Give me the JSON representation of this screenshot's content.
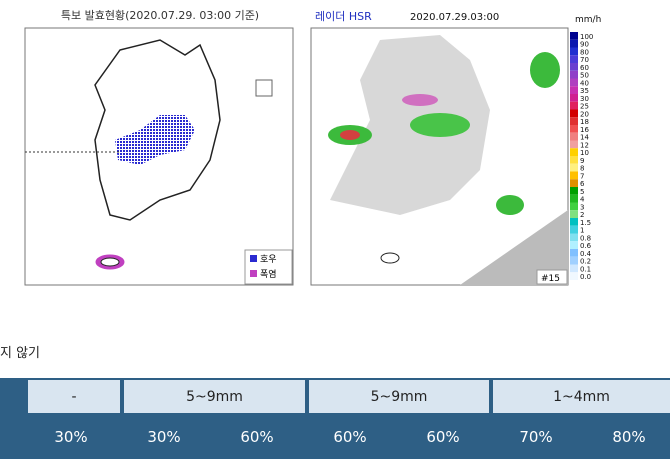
{
  "warning_map": {
    "title": "특보 발효현황(2020.07.29. 03:00 기준)",
    "legend": [
      "호우",
      "폭염"
    ]
  },
  "radar_map": {
    "title": "레이더 HSR",
    "time": "2020.07.29.03:00",
    "unit": "mm/h",
    "scale": [
      "100",
      "90",
      "80",
      "70",
      "60",
      "50",
      "40",
      "35",
      "30",
      "25",
      "20",
      "18",
      "16",
      "14",
      "12",
      "10",
      "9",
      "8",
      "7",
      "6",
      "5",
      "4",
      "3",
      "2",
      "1.5",
      "1",
      "0.8",
      "0.6",
      "0.4",
      "0.2",
      "0.1",
      "0.0"
    ],
    "frame": "#15"
  },
  "caption": "지 않기",
  "table": {
    "rows": [
      [
        "-",
        "5~9mm",
        "5~9mm",
        "1~4mm"
      ],
      [
        "30%",
        "30%",
        "60%",
        "60%",
        "60%",
        "70%",
        "80%"
      ]
    ]
  }
}
